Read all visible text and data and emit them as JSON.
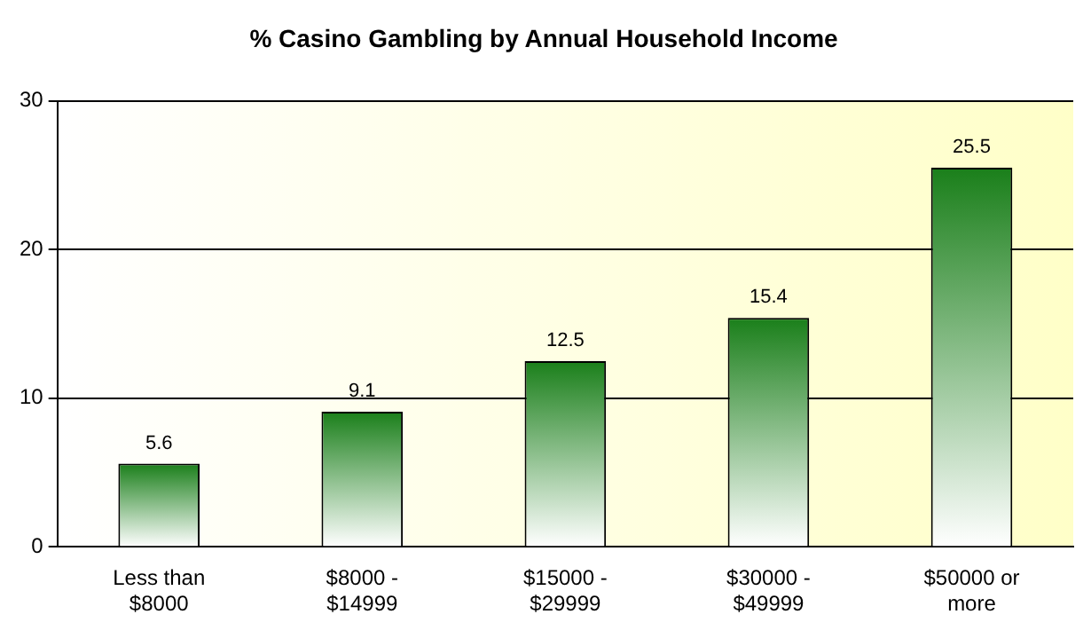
{
  "chart_data": {
    "type": "bar",
    "title": "% Casino Gambling by Annual Household Income",
    "categories": [
      "Less than\n$8000",
      "$8000 -\n$14999",
      "$15000 -\n$29999",
      "$30000 -\n$49999",
      "$50000 or\nmore"
    ],
    "values": [
      5.6,
      9.1,
      12.5,
      15.4,
      25.5
    ],
    "color": "#1a7f1a",
    "ylim": [
      0,
      30
    ],
    "yticks": [
      0,
      10,
      20,
      30
    ],
    "grid": "y",
    "data_labels": true,
    "legend": false
  }
}
